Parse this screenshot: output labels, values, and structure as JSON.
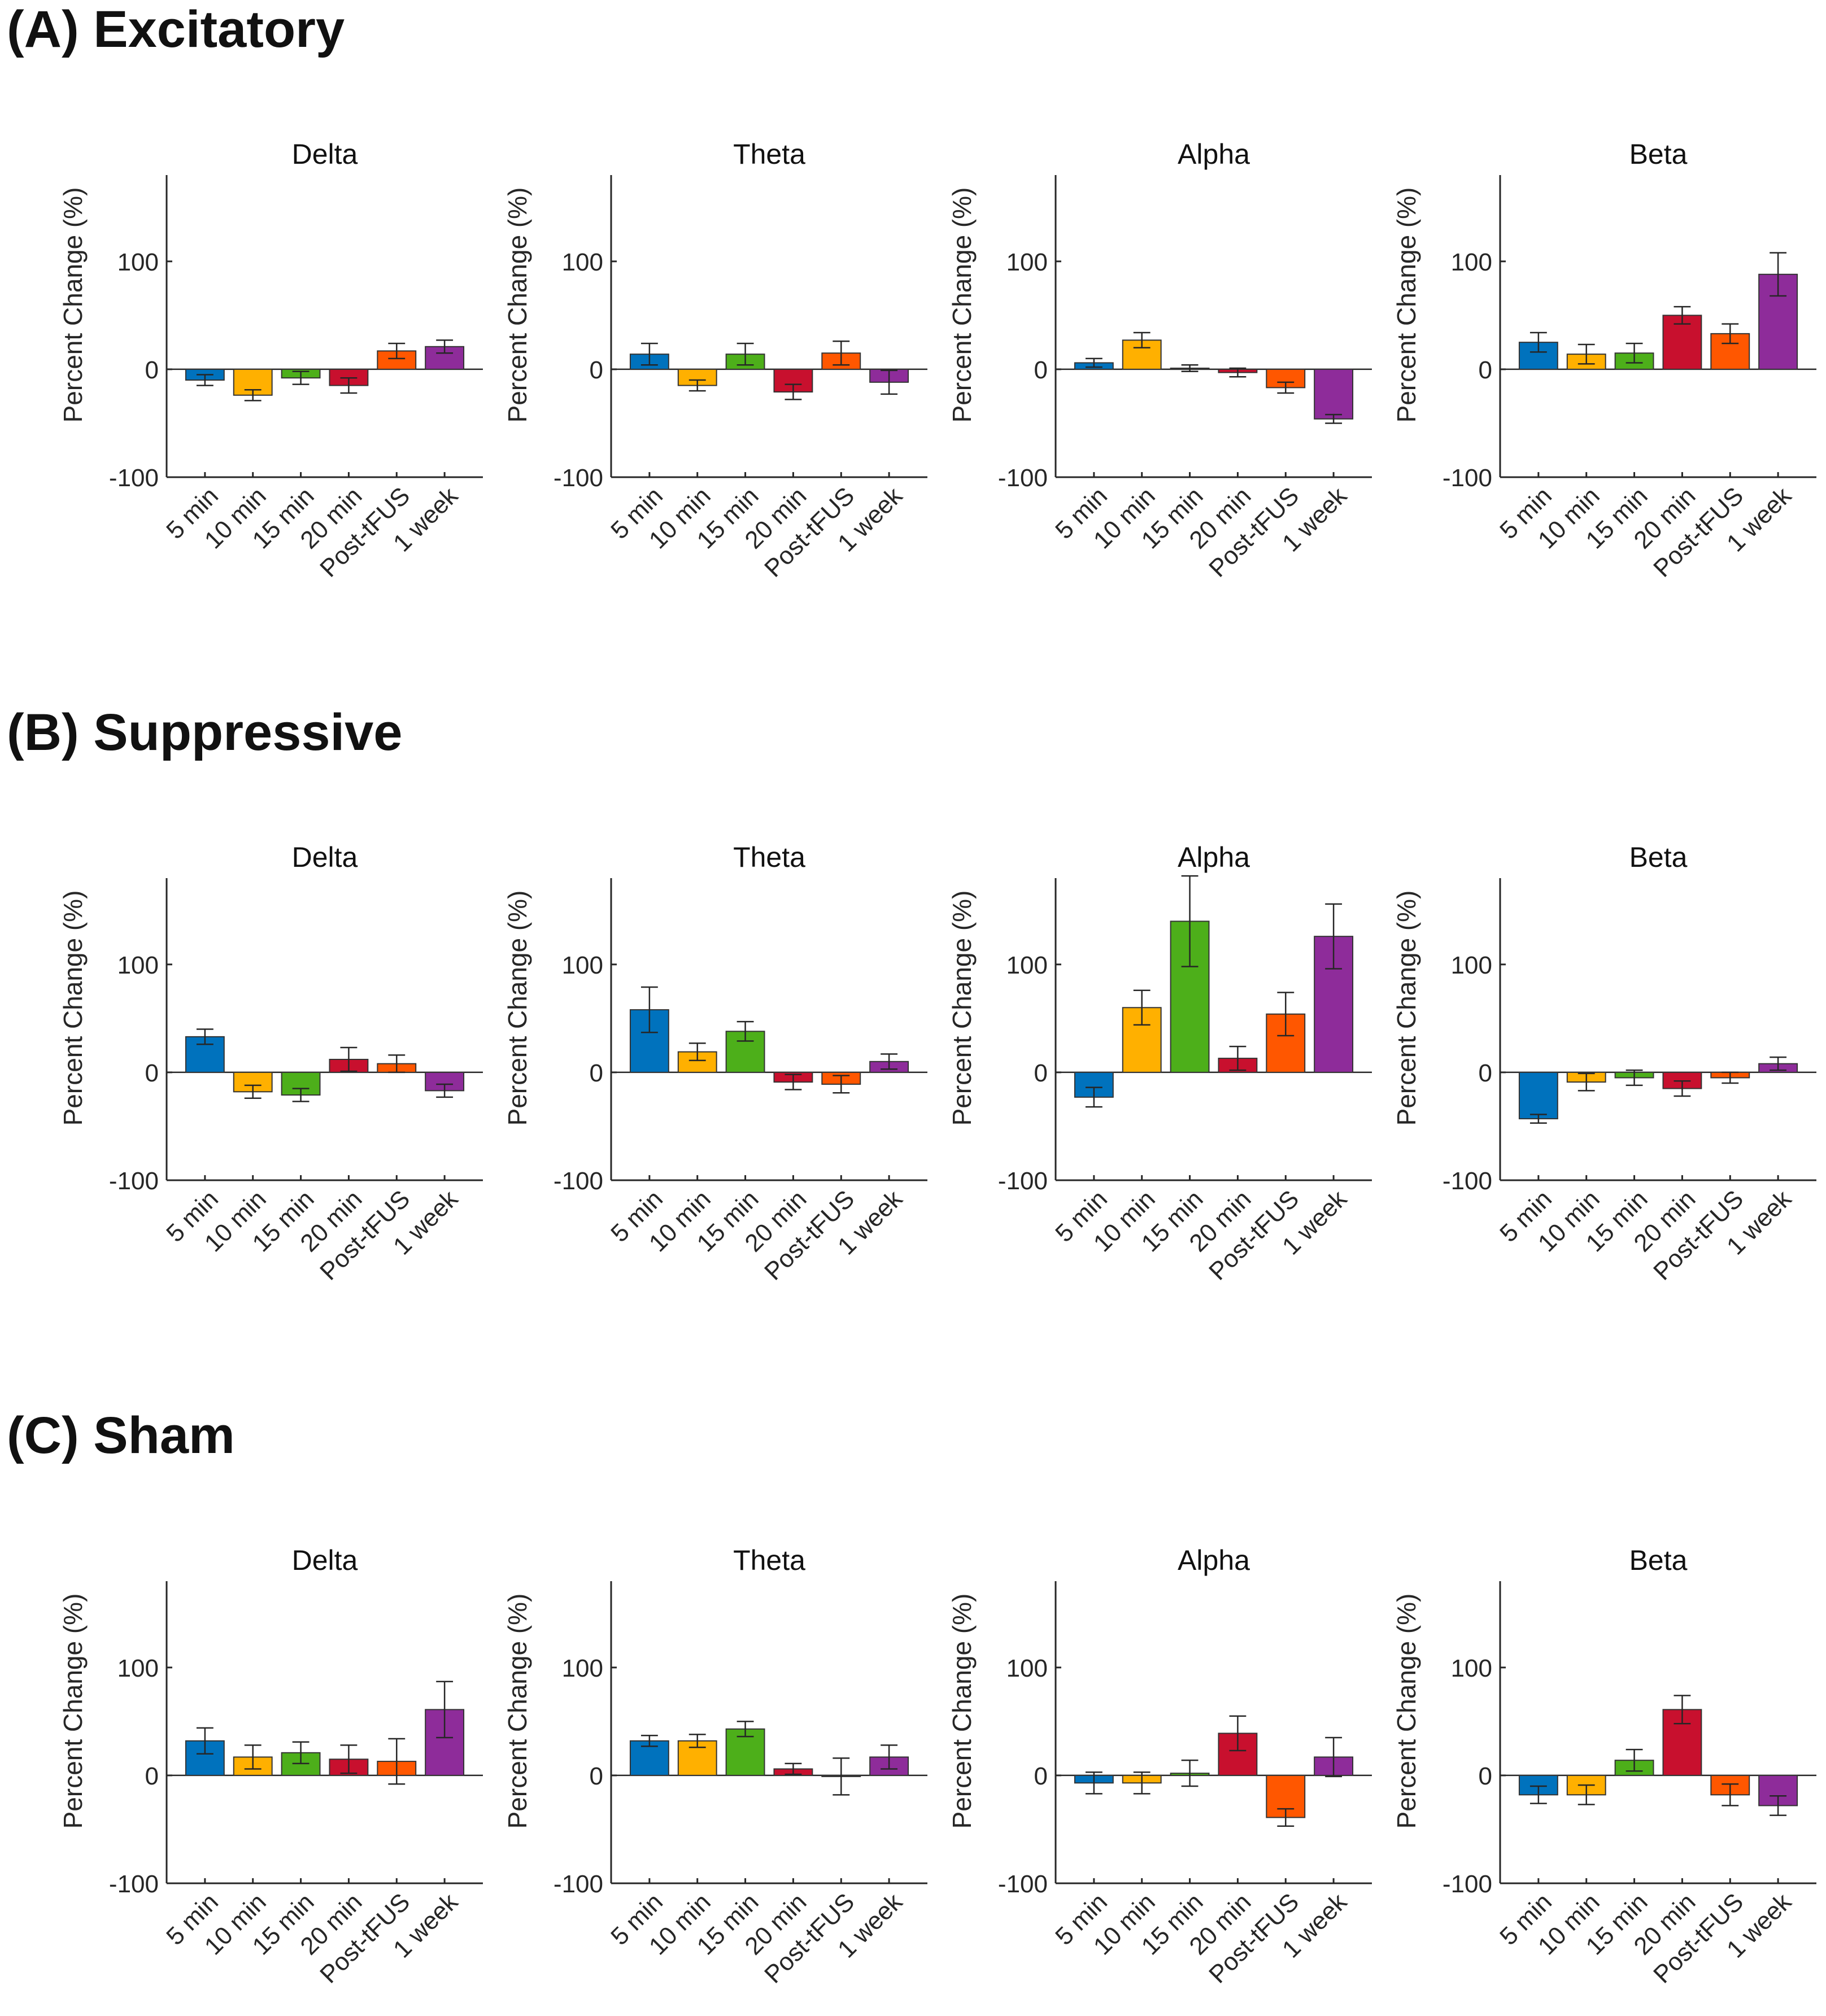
{
  "sections": [
    {
      "title": "(A) Excitatory"
    },
    {
      "title": "(B) Suppressive"
    },
    {
      "title": "(C) Sham"
    }
  ],
  "chart_data": [
    {
      "group": "(A) Excitatory",
      "type": "bar",
      "title": "Delta",
      "ylabel": "Percent Change (%)",
      "ylim": [
        -100,
        180
      ],
      "yticks": [
        -100,
        0,
        100
      ],
      "categories": [
        "5 min",
        "10 min",
        "15 min",
        "20 min",
        "Post-tFUS",
        "1 week"
      ],
      "values": [
        -10,
        -24,
        -8,
        -15,
        17,
        21
      ],
      "errors": [
        5,
        5,
        6,
        7,
        7,
        6
      ]
    },
    {
      "group": "(A) Excitatory",
      "type": "bar",
      "title": "Theta",
      "ylabel": "Percent Change (%)",
      "ylim": [
        -100,
        180
      ],
      "yticks": [
        -100,
        0,
        100
      ],
      "categories": [
        "5 min",
        "10 min",
        "15 min",
        "20 min",
        "Post-tFUS",
        "1 week"
      ],
      "values": [
        14,
        -15,
        14,
        -21,
        15,
        -12
      ],
      "errors": [
        10,
        5,
        10,
        7,
        11,
        11
      ]
    },
    {
      "group": "(A) Excitatory",
      "type": "bar",
      "title": "Alpha",
      "ylabel": "Percent Change (%)",
      "ylim": [
        -100,
        180
      ],
      "yticks": [
        -100,
        0,
        100
      ],
      "categories": [
        "5 min",
        "10 min",
        "15 min",
        "20 min",
        "Post-tFUS",
        "1 week"
      ],
      "values": [
        6,
        27,
        1,
        -3,
        -17,
        -46
      ],
      "errors": [
        4,
        7,
        3,
        4,
        5,
        4
      ]
    },
    {
      "group": "(A) Excitatory",
      "type": "bar",
      "title": "Beta",
      "ylabel": "Percent Change (%)",
      "ylim": [
        -100,
        180
      ],
      "yticks": [
        -100,
        0,
        100
      ],
      "categories": [
        "5 min",
        "10 min",
        "15 min",
        "20 min",
        "Post-tFUS",
        "1 week"
      ],
      "values": [
        25,
        14,
        15,
        50,
        33,
        88
      ],
      "errors": [
        9,
        9,
        9,
        8,
        9,
        20
      ]
    },
    {
      "group": "(B) Suppressive",
      "type": "bar",
      "title": "Delta",
      "ylabel": "Percent Change (%)",
      "ylim": [
        -100,
        180
      ],
      "yticks": [
        -100,
        0,
        100
      ],
      "categories": [
        "5 min",
        "10 min",
        "15 min",
        "20 min",
        "Post-tFUS",
        "1 week"
      ],
      "values": [
        33,
        -18,
        -21,
        12,
        8,
        -17
      ],
      "errors": [
        7,
        6,
        6,
        11,
        8,
        6
      ]
    },
    {
      "group": "(B) Suppressive",
      "type": "bar",
      "title": "Theta",
      "ylabel": "Percent Change (%)",
      "ylim": [
        -100,
        180
      ],
      "yticks": [
        -100,
        0,
        100
      ],
      "categories": [
        "5 min",
        "10 min",
        "15 min",
        "20 min",
        "Post-tFUS",
        "1 week"
      ],
      "values": [
        58,
        19,
        38,
        -9,
        -11,
        10
      ],
      "errors": [
        21,
        8,
        9,
        7,
        8,
        7
      ]
    },
    {
      "group": "(B) Suppressive",
      "type": "bar",
      "title": "Alpha",
      "ylabel": "Percent Change (%)",
      "ylim": [
        -100,
        180
      ],
      "yticks": [
        -100,
        0,
        100
      ],
      "categories": [
        "5 min",
        "10 min",
        "15 min",
        "20 min",
        "Post-tFUS",
        "1 week"
      ],
      "values": [
        -23,
        60,
        140,
        13,
        54,
        126
      ],
      "errors": [
        9,
        16,
        42,
        11,
        20,
        30
      ]
    },
    {
      "group": "(B) Suppressive",
      "type": "bar",
      "title": "Beta",
      "ylabel": "Percent Change (%)",
      "ylim": [
        -100,
        180
      ],
      "yticks": [
        -100,
        0,
        100
      ],
      "categories": [
        "5 min",
        "10 min",
        "15 min",
        "20 min",
        "Post-tFUS",
        "1 week"
      ],
      "values": [
        -43,
        -9,
        -5,
        -15,
        -5,
        8
      ],
      "errors": [
        4,
        8,
        7,
        7,
        5,
        6
      ]
    },
    {
      "group": "(C) Sham",
      "type": "bar",
      "title": "Delta",
      "ylabel": "Percent Change (%)",
      "ylim": [
        -100,
        180
      ],
      "yticks": [
        -100,
        0,
        100
      ],
      "categories": [
        "5 min",
        "10 min",
        "15 min",
        "20 min",
        "Post-tFUS",
        "1 week"
      ],
      "values": [
        32,
        17,
        21,
        15,
        13,
        61
      ],
      "errors": [
        12,
        11,
        10,
        13,
        21,
        26
      ]
    },
    {
      "group": "(C) Sham",
      "type": "bar",
      "title": "Theta",
      "ylabel": "Percent Change (%)",
      "ylim": [
        -100,
        180
      ],
      "yticks": [
        -100,
        0,
        100
      ],
      "categories": [
        "5 min",
        "10 min",
        "15 min",
        "20 min",
        "Post-tFUS",
        "1 week"
      ],
      "values": [
        32,
        32,
        43,
        6,
        -1,
        17
      ],
      "errors": [
        5,
        6,
        7,
        5,
        17,
        11
      ]
    },
    {
      "group": "(C) Sham",
      "type": "bar",
      "title": "Alpha",
      "ylabel": "Percent Change (%)",
      "ylim": [
        -100,
        180
      ],
      "yticks": [
        -100,
        0,
        100
      ],
      "categories": [
        "5 min",
        "10 min",
        "15 min",
        "20 min",
        "Post-tFUS",
        "1 week"
      ],
      "values": [
        -7,
        -7,
        2,
        39,
        -39,
        17
      ],
      "errors": [
        10,
        10,
        12,
        16,
        8,
        18
      ]
    },
    {
      "group": "(C) Sham",
      "type": "bar",
      "title": "Beta",
      "ylabel": "Percent Change (%)",
      "ylim": [
        -100,
        180
      ],
      "yticks": [
        -100,
        0,
        100
      ],
      "categories": [
        "5 min",
        "10 min",
        "15 min",
        "20 min",
        "Post-tFUS",
        "1 week"
      ],
      "values": [
        -18,
        -18,
        14,
        61,
        -18,
        -28
      ],
      "errors": [
        8,
        9,
        10,
        13,
        10,
        9
      ]
    }
  ],
  "colors": {
    "categories": [
      "#0072BD",
      "#FFB000",
      "#4DAF1A",
      "#C8102E",
      "#FF5700",
      "#8E2C9A"
    ],
    "axis": "#262626",
    "errorbar": "#262626"
  }
}
